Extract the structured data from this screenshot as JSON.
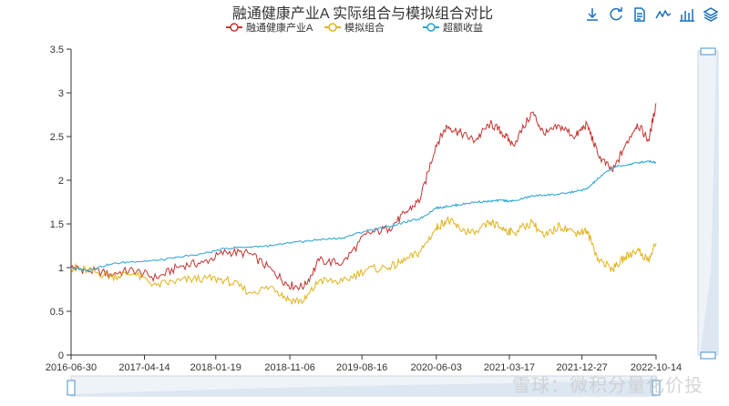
{
  "toolbar": {
    "icons": [
      "download-icon",
      "refresh-icon",
      "data-view-icon",
      "line-chart-icon",
      "bar-chart-icon",
      "stack-icon"
    ]
  },
  "watermark": "雪球：微积分量化价投",
  "chart_data": {
    "type": "line",
    "title": "融通健康产业A 实际组合与模拟组合对比",
    "legend_position": "top-center",
    "grid": false,
    "ylim": [
      0,
      3.5
    ],
    "yticks": [
      "0",
      "0.5",
      "1",
      "1.5",
      "2",
      "2.5",
      "3",
      "3.5"
    ],
    "xlim": [
      "2016-06-30",
      "2022-10-14"
    ],
    "xticks": [
      "2016-06-30",
      "2017-04-14",
      "2018-01-19",
      "2018-11-06",
      "2019-08-16",
      "2020-06-03",
      "2021-03-17",
      "2021-12-27",
      "2022-10-14"
    ],
    "series": [
      {
        "name": "融通健康产业A",
        "color": "#c23531",
        "x": [
          "2016-06-30",
          "2016-09-01",
          "2016-12-01",
          "2017-03-01",
          "2017-06-01",
          "2017-09-01",
          "2017-12-01",
          "2018-03-01",
          "2018-06-01",
          "2018-09-01",
          "2018-11-01",
          "2019-01-01",
          "2019-03-01",
          "2019-06-01",
          "2019-09-01",
          "2019-12-01",
          "2020-02-01",
          "2020-04-01",
          "2020-06-01",
          "2020-07-15",
          "2020-09-01",
          "2020-11-01",
          "2021-01-01",
          "2021-02-15",
          "2021-04-01",
          "2021-06-15",
          "2021-08-01",
          "2021-10-01",
          "2021-12-01",
          "2022-01-15",
          "2022-03-01",
          "2022-04-27",
          "2022-06-15",
          "2022-08-01",
          "2022-09-15",
          "2022-10-14"
        ],
        "values": [
          1.0,
          0.97,
          0.93,
          0.97,
          0.88,
          1.02,
          1.06,
          1.18,
          1.16,
          0.96,
          0.8,
          0.78,
          1.08,
          1.05,
          1.38,
          1.45,
          1.62,
          1.78,
          2.4,
          2.62,
          2.55,
          2.45,
          2.65,
          2.55,
          2.4,
          2.78,
          2.52,
          2.62,
          2.5,
          2.65,
          2.28,
          2.1,
          2.4,
          2.65,
          2.45,
          2.88
        ]
      },
      {
        "name": "模拟组合",
        "color": "#e0b21c",
        "x": [
          "2016-06-30",
          "2016-09-01",
          "2016-12-01",
          "2017-03-01",
          "2017-06-01",
          "2017-09-01",
          "2017-12-01",
          "2018-03-01",
          "2018-06-01",
          "2018-09-01",
          "2018-11-01",
          "2019-01-01",
          "2019-03-01",
          "2019-06-01",
          "2019-09-01",
          "2019-12-01",
          "2020-02-01",
          "2020-04-01",
          "2020-06-01",
          "2020-07-15",
          "2020-09-01",
          "2020-11-01",
          "2021-01-01",
          "2021-02-15",
          "2021-04-01",
          "2021-06-15",
          "2021-08-01",
          "2021-10-01",
          "2021-12-01",
          "2022-01-15",
          "2022-03-01",
          "2022-04-27",
          "2022-06-15",
          "2022-08-01",
          "2022-09-15",
          "2022-10-14"
        ],
        "values": [
          1.0,
          0.97,
          0.9,
          0.93,
          0.8,
          0.85,
          0.88,
          0.86,
          0.72,
          0.78,
          0.63,
          0.62,
          0.85,
          0.84,
          0.98,
          1.0,
          1.08,
          1.18,
          1.45,
          1.55,
          1.45,
          1.38,
          1.52,
          1.45,
          1.4,
          1.52,
          1.35,
          1.48,
          1.4,
          1.42,
          1.1,
          0.98,
          1.12,
          1.2,
          1.08,
          1.28
        ]
      },
      {
        "name": "超额收益",
        "color": "#27a3cf",
        "x": [
          "2016-06-30",
          "2016-09-01",
          "2016-12-01",
          "2017-03-01",
          "2017-06-01",
          "2017-09-01",
          "2017-12-01",
          "2018-03-01",
          "2018-06-01",
          "2018-09-01",
          "2018-11-01",
          "2019-01-01",
          "2019-03-01",
          "2019-06-01",
          "2019-09-01",
          "2019-12-01",
          "2020-02-01",
          "2020-04-01",
          "2020-06-01",
          "2020-07-15",
          "2020-09-01",
          "2020-11-01",
          "2021-01-01",
          "2021-02-15",
          "2021-04-01",
          "2021-06-15",
          "2021-08-01",
          "2021-10-01",
          "2021-12-01",
          "2022-01-15",
          "2022-03-01",
          "2022-04-27",
          "2022-06-15",
          "2022-08-01",
          "2022-09-15",
          "2022-10-14"
        ],
        "values": [
          1.0,
          0.97,
          1.04,
          1.07,
          1.08,
          1.12,
          1.16,
          1.22,
          1.24,
          1.25,
          1.28,
          1.3,
          1.32,
          1.34,
          1.42,
          1.47,
          1.52,
          1.56,
          1.68,
          1.7,
          1.72,
          1.75,
          1.76,
          1.77,
          1.76,
          1.82,
          1.83,
          1.84,
          1.87,
          1.9,
          2.02,
          2.15,
          2.17,
          2.2,
          2.22,
          2.2
        ]
      }
    ]
  }
}
